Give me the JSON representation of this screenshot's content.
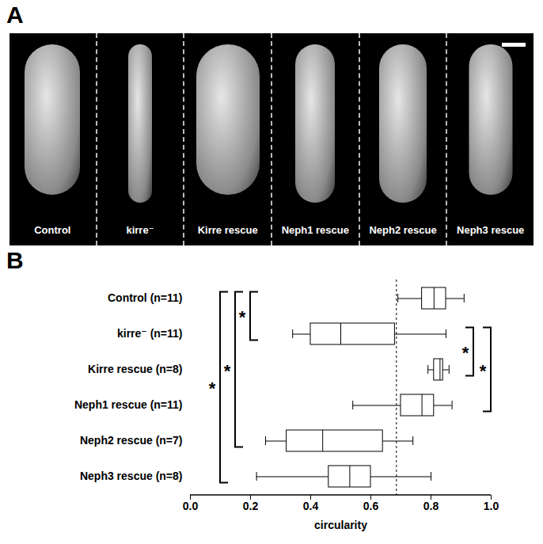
{
  "panel_a": {
    "letter": "A",
    "labels": [
      "Control",
      "kirre⁻",
      "Kirre rescue",
      "Neph1 rescue",
      "Neph2 rescue",
      "Neph3 rescue"
    ]
  },
  "chart_data": {
    "type": "box",
    "panel_letter": "B",
    "orientation": "horizontal",
    "categories": [
      "Control (n=11)",
      "kirre⁻ (n=11)",
      "Kirre rescue (n=8)",
      "Neph1 rescue (n=11)",
      "Neph2 rescue (n=7)",
      "Neph3 rescue (n=8)"
    ],
    "values": [
      {
        "min": 0.69,
        "q1": 0.77,
        "median": 0.81,
        "q3": 0.85,
        "max": 0.91
      },
      {
        "min": 0.34,
        "q1": 0.4,
        "median": 0.5,
        "q3": 0.68,
        "max": 0.85
      },
      {
        "min": 0.79,
        "q1": 0.81,
        "median": 0.83,
        "q3": 0.84,
        "max": 0.86
      },
      {
        "min": 0.54,
        "q1": 0.7,
        "median": 0.77,
        "q3": 0.81,
        "max": 0.87
      },
      {
        "min": 0.25,
        "q1": 0.32,
        "median": 0.44,
        "q3": 0.64,
        "max": 0.74
      },
      {
        "min": 0.22,
        "q1": 0.46,
        "median": 0.53,
        "q3": 0.6,
        "max": 0.8
      }
    ],
    "color": "#000000",
    "x_label": "circularity",
    "xlim": [
      0,
      1
    ],
    "xticks": [
      {
        "value": 0,
        "label": "0.0"
      },
      {
        "value": 0.2,
        "label": "0.2"
      },
      {
        "value": 0.4,
        "label": "0.4"
      },
      {
        "value": 0.6,
        "label": "0.6"
      },
      {
        "value": 0.8,
        "label": "0.8"
      },
      {
        "value": 1,
        "label": "1.0"
      }
    ],
    "reference_line": 0.685,
    "annotations": [
      {
        "from": "Control (n=11)",
        "to": "kirre⁻ (n=11)",
        "text": "*"
      },
      {
        "from": "Control (n=11)",
        "to": "Neph2 rescue (n=7)",
        "text": "*"
      },
      {
        "from": "Control (n=11)",
        "to": "Neph3 rescue (n=8)",
        "text": "*"
      },
      {
        "from": "kirre⁻ (n=11)",
        "to": "Kirre rescue (n=8)",
        "text": "*"
      },
      {
        "from": "kirre⁻ (n=11)",
        "to": "Neph1 rescue (n=11)",
        "text": "*"
      }
    ]
  }
}
